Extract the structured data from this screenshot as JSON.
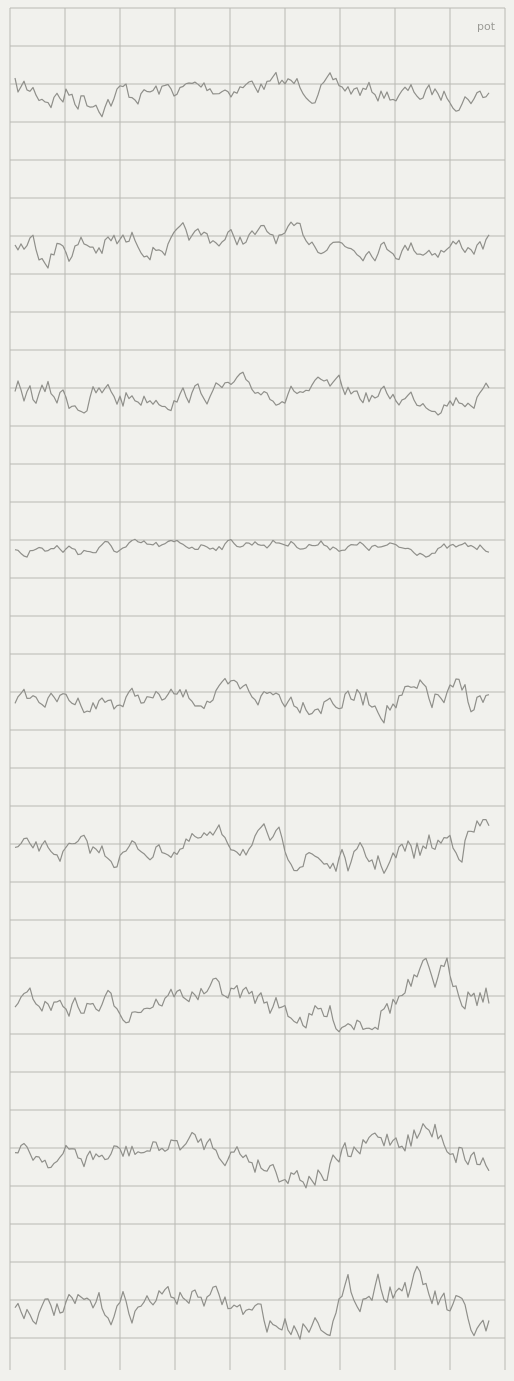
{
  "header": {
    "label": "pot"
  }
}
